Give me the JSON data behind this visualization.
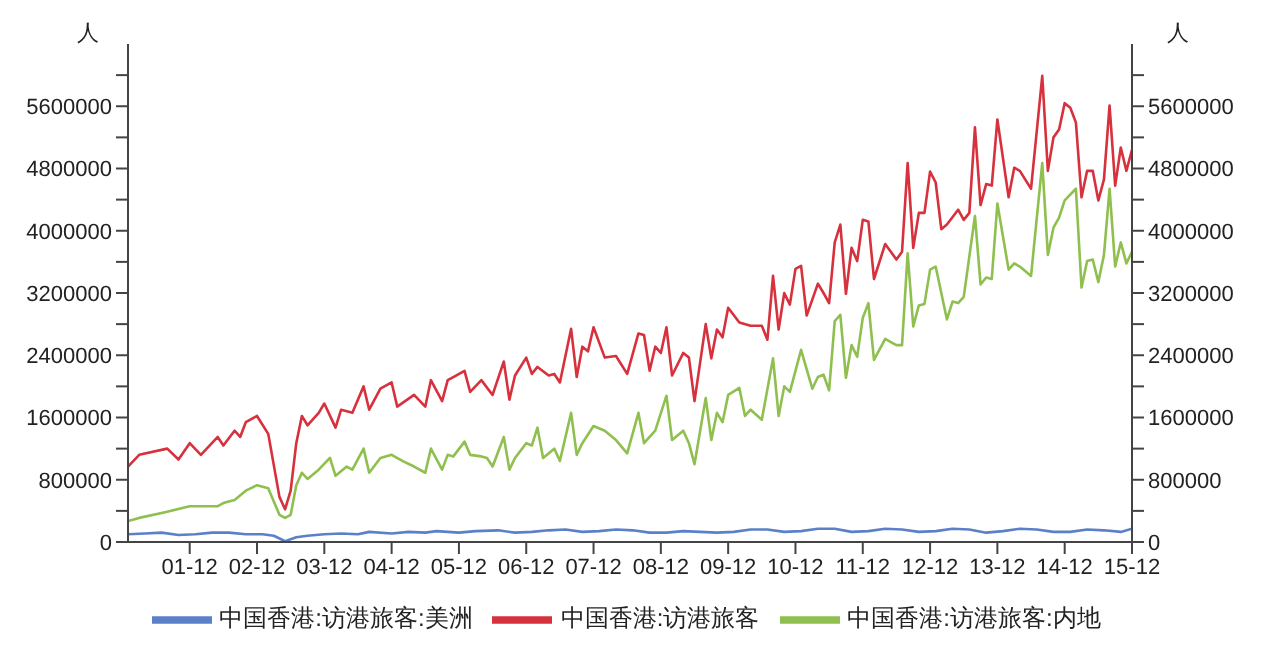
{
  "chart_data": {
    "type": "line",
    "ylabel": "人",
    "y2label": "人",
    "xlim": [
      "2001-01",
      "2015-12"
    ],
    "xticks": [
      {
        "value": "2001-12",
        "label": "01-12"
      },
      {
        "value": "2002-12",
        "label": "02-12"
      },
      {
        "value": "2003-12",
        "label": "03-12"
      },
      {
        "value": "2004-12",
        "label": "04-12"
      },
      {
        "value": "2005-12",
        "label": "05-12"
      },
      {
        "value": "2006-12",
        "label": "06-12"
      },
      {
        "value": "2007-12",
        "label": "07-12"
      },
      {
        "value": "2008-12",
        "label": "08-12"
      },
      {
        "value": "2009-12",
        "label": "09-12"
      },
      {
        "value": "2010-12",
        "label": "10-12"
      },
      {
        "value": "2011-12",
        "label": "11-12"
      },
      {
        "value": "2012-12",
        "label": "12-12"
      },
      {
        "value": "2013-12",
        "label": "13-12"
      },
      {
        "value": "2014-12",
        "label": "14-12"
      },
      {
        "value": "2015-12",
        "label": "15-12"
      }
    ],
    "ylim": [
      0,
      6400000
    ],
    "yticks": [
      0,
      {
        "value": 400000,
        "label": null
      },
      800000,
      {
        "value": 1200000,
        "label": null
      },
      1600000,
      {
        "value": 2000000,
        "label": null
      },
      2400000,
      {
        "value": 2800000,
        "label": null
      },
      3200000,
      {
        "value": 3600000,
        "label": null
      },
      4000000,
      {
        "value": 4400000,
        "label": null
      },
      4800000,
      {
        "value": 5200000,
        "label": null
      },
      5600000,
      {
        "value": 6000000,
        "label": null
      }
    ],
    "y2lim": [
      0,
      6400000
    ],
    "y2ticks": [
      0,
      {
        "value": 400000,
        "label": null
      },
      800000,
      {
        "value": 1200000,
        "label": null
      },
      1600000,
      {
        "value": 2000000,
        "label": null
      },
      2400000,
      {
        "value": 2800000,
        "label": null
      },
      3200000,
      {
        "value": 3600000,
        "label": null
      },
      4000000,
      {
        "value": 4400000,
        "label": null
      },
      4800000,
      {
        "value": 5200000,
        "label": null
      },
      5600000,
      {
        "value": 6000000,
        "label": null
      }
    ],
    "legend": "bottom",
    "marker": "none",
    "line_style": "solid",
    "series": [
      {
        "name": "中国香港:访港旅客:美洲",
        "color": "#5b80c8",
        "x": [
          "2001-01",
          "2001-04",
          "2001-07",
          "2001-10",
          "2002-01",
          "2002-04",
          "2002-07",
          "2002-10",
          "2003-01",
          "2003-03",
          "2003-05",
          "2003-07",
          "2003-09",
          "2003-12",
          "2004-03",
          "2004-06",
          "2004-08",
          "2004-12",
          "2005-03",
          "2005-06",
          "2005-08",
          "2005-12",
          "2006-03",
          "2006-07",
          "2006-10",
          "2007-01",
          "2007-04",
          "2007-07",
          "2007-10",
          "2008-01",
          "2008-04",
          "2008-07",
          "2008-10",
          "2009-01",
          "2009-04",
          "2009-07",
          "2009-10",
          "2010-01",
          "2010-04",
          "2010-07",
          "2010-10",
          "2011-01",
          "2011-04",
          "2011-07",
          "2011-10",
          "2012-01",
          "2012-04",
          "2012-07",
          "2012-10",
          "2013-01",
          "2013-04",
          "2013-07",
          "2013-10",
          "2014-01",
          "2014-04",
          "2014-07",
          "2014-10",
          "2015-01",
          "2015-04",
          "2015-07",
          "2015-10",
          "2015-12"
        ],
        "values": [
          100000,
          110000,
          120000,
          90000,
          100000,
          120000,
          120000,
          100000,
          100000,
          80000,
          10000,
          60000,
          80000,
          100000,
          110000,
          100000,
          130000,
          110000,
          130000,
          120000,
          140000,
          120000,
          140000,
          150000,
          120000,
          130000,
          150000,
          160000,
          130000,
          140000,
          160000,
          150000,
          120000,
          120000,
          140000,
          130000,
          120000,
          130000,
          160000,
          160000,
          130000,
          140000,
          170000,
          170000,
          130000,
          140000,
          170000,
          160000,
          130000,
          140000,
          170000,
          160000,
          120000,
          140000,
          170000,
          160000,
          130000,
          130000,
          160000,
          150000,
          130000,
          170000
        ]
      },
      {
        "name": "中国香港:访港旅客",
        "color": "#d6313d",
        "x": [
          "2001-01",
          "2001-03",
          "2001-08",
          "2001-10",
          "2001-12",
          "2002-02",
          "2002-05",
          "2002-06",
          "2002-08",
          "2002-09",
          "2002-10",
          "2002-12",
          "2003-02",
          "2003-04",
          "2003-05",
          "2003-06",
          "2003-07",
          "2003-08",
          "2003-09",
          "2003-11",
          "2003-12",
          "2004-02",
          "2004-03",
          "2004-05",
          "2004-07",
          "2004-08",
          "2004-10",
          "2004-12",
          "2005-01",
          "2005-04",
          "2005-06",
          "2005-07",
          "2005-09",
          "2005-10",
          "2005-11",
          "2006-01",
          "2006-02",
          "2006-04",
          "2006-06",
          "2006-08",
          "2006-09",
          "2006-10",
          "2006-12",
          "2007-01",
          "2007-02",
          "2007-04",
          "2007-05",
          "2007-06",
          "2007-08",
          "2007-09",
          "2007-10",
          "2007-11",
          "2007-12",
          "2008-02",
          "2008-04",
          "2008-06",
          "2008-08",
          "2008-09",
          "2008-10",
          "2008-11",
          "2008-12",
          "2009-01",
          "2009-02",
          "2009-04",
          "2009-05",
          "2009-06",
          "2009-08",
          "2009-09",
          "2009-10",
          "2009-11",
          "2009-12",
          "2010-02",
          "2010-04",
          "2010-06",
          "2010-07",
          "2010-08",
          "2010-09",
          "2010-10",
          "2010-11",
          "2010-12",
          "2011-01",
          "2011-02",
          "2011-04",
          "2011-05",
          "2011-06",
          "2011-07",
          "2011-08",
          "2011-09",
          "2011-10",
          "2011-11",
          "2011-12",
          "2012-01",
          "2012-02",
          "2012-04",
          "2012-05",
          "2012-06",
          "2012-07",
          "2012-08",
          "2012-09",
          "2012-10",
          "2012-11",
          "2012-12",
          "2013-01",
          "2013-02",
          "2013-03",
          "2013-05",
          "2013-06",
          "2013-07",
          "2013-08",
          "2013-09",
          "2013-10",
          "2013-11",
          "2013-12",
          "2014-02",
          "2014-03",
          "2014-04",
          "2014-06",
          "2014-08",
          "2014-09",
          "2014-10",
          "2014-11",
          "2014-12",
          "2015-01",
          "2015-02",
          "2015-03",
          "2015-04",
          "2015-05",
          "2015-06",
          "2015-07",
          "2015-08",
          "2015-09",
          "2015-10",
          "2015-11",
          "2015-12"
        ],
        "values": [
          970000,
          1120000,
          1200000,
          1060000,
          1270000,
          1120000,
          1350000,
          1240000,
          1430000,
          1350000,
          1540000,
          1620000,
          1390000,
          580000,
          420000,
          660000,
          1270000,
          1620000,
          1500000,
          1660000,
          1780000,
          1470000,
          1700000,
          1660000,
          2000000,
          1700000,
          1970000,
          2050000,
          1740000,
          1890000,
          1740000,
          2080000,
          1810000,
          2080000,
          2120000,
          2200000,
          1930000,
          2080000,
          1890000,
          2320000,
          1830000,
          2140000,
          2370000,
          2160000,
          2250000,
          2140000,
          2160000,
          2050000,
          2740000,
          2120000,
          2510000,
          2450000,
          2760000,
          2370000,
          2390000,
          2160000,
          2680000,
          2660000,
          2200000,
          2510000,
          2430000,
          2760000,
          2140000,
          2430000,
          2370000,
          1810000,
          2800000,
          2360000,
          2730000,
          2630000,
          3010000,
          2820000,
          2780000,
          2780000,
          2600000,
          3420000,
          2730000,
          3200000,
          3050000,
          3510000,
          3550000,
          2910000,
          3320000,
          3200000,
          3070000,
          3850000,
          4080000,
          3190000,
          3780000,
          3610000,
          4140000,
          4120000,
          3380000,
          3830000,
          3730000,
          3630000,
          3730000,
          4870000,
          3780000,
          4230000,
          4230000,
          4760000,
          4620000,
          4020000,
          4080000,
          4270000,
          4140000,
          4230000,
          5330000,
          4330000,
          4600000,
          4580000,
          5430000,
          4430000,
          4810000,
          4770000,
          4540000,
          5990000,
          4770000,
          5200000,
          5300000,
          5640000,
          5580000,
          5390000,
          4430000,
          4770000,
          4770000,
          4390000,
          4660000,
          5610000,
          4580000,
          5070000,
          4770000,
          5040000
        ]
      },
      {
        "name": "中国香港:访港旅客:内地",
        "color": "#8fbf4f",
        "x": [
          "2001-01",
          "2001-03",
          "2001-08",
          "2001-12",
          "2002-05",
          "2002-06",
          "2002-08",
          "2002-10",
          "2002-12",
          "2003-02",
          "2003-04",
          "2003-05",
          "2003-06",
          "2003-07",
          "2003-08",
          "2003-09",
          "2003-11",
          "2004-01",
          "2004-02",
          "2004-04",
          "2004-05",
          "2004-07",
          "2004-08",
          "2004-10",
          "2004-12",
          "2005-02",
          "2005-04",
          "2005-06",
          "2005-07",
          "2005-09",
          "2005-10",
          "2005-11",
          "2006-01",
          "2006-02",
          "2006-04",
          "2006-05",
          "2006-06",
          "2006-08",
          "2006-09",
          "2006-10",
          "2006-12",
          "2007-01",
          "2007-02",
          "2007-03",
          "2007-05",
          "2007-06",
          "2007-08",
          "2007-09",
          "2007-10",
          "2007-12",
          "2008-02",
          "2008-04",
          "2008-06",
          "2008-08",
          "2008-09",
          "2008-10",
          "2008-11",
          "2009-01",
          "2009-02",
          "2009-04",
          "2009-05",
          "2009-06",
          "2009-08",
          "2009-09",
          "2009-10",
          "2009-11",
          "2009-12",
          "2010-02",
          "2010-03",
          "2010-04",
          "2010-06",
          "2010-08",
          "2010-09",
          "2010-10",
          "2010-11",
          "2011-01",
          "2011-03",
          "2011-04",
          "2011-05",
          "2011-06",
          "2011-07",
          "2011-08",
          "2011-09",
          "2011-10",
          "2011-11",
          "2011-12",
          "2012-01",
          "2012-02",
          "2012-04",
          "2012-05",
          "2012-06",
          "2012-07",
          "2012-08",
          "2012-09",
          "2012-10",
          "2012-11",
          "2012-12",
          "2013-01",
          "2013-03",
          "2013-04",
          "2013-05",
          "2013-06",
          "2013-08",
          "2013-09",
          "2013-10",
          "2013-11",
          "2013-12",
          "2014-02",
          "2014-03",
          "2014-04",
          "2014-06",
          "2014-08",
          "2014-09",
          "2014-10",
          "2014-11",
          "2014-12",
          "2015-02",
          "2015-03",
          "2015-04",
          "2015-05",
          "2015-06",
          "2015-07",
          "2015-08",
          "2015-09",
          "2015-10",
          "2015-11",
          "2015-12"
        ],
        "values": [
          270000,
          310000,
          390000,
          460000,
          460000,
          500000,
          540000,
          660000,
          730000,
          690000,
          350000,
          310000,
          350000,
          730000,
          890000,
          810000,
          930000,
          1080000,
          850000,
          970000,
          930000,
          1200000,
          890000,
          1080000,
          1120000,
          1040000,
          970000,
          890000,
          1200000,
          930000,
          1120000,
          1100000,
          1290000,
          1120000,
          1100000,
          1080000,
          970000,
          1350000,
          930000,
          1080000,
          1270000,
          1240000,
          1470000,
          1080000,
          1200000,
          1040000,
          1660000,
          1120000,
          1270000,
          1490000,
          1430000,
          1310000,
          1140000,
          1660000,
          1270000,
          1350000,
          1430000,
          1880000,
          1310000,
          1430000,
          1270000,
          1000000,
          1850000,
          1310000,
          1660000,
          1540000,
          1890000,
          1980000,
          1620000,
          1700000,
          1570000,
          2360000,
          1620000,
          2000000,
          1930000,
          2470000,
          1970000,
          2120000,
          2150000,
          1950000,
          2840000,
          2920000,
          2110000,
          2530000,
          2380000,
          2880000,
          3070000,
          2340000,
          2610000,
          2570000,
          2530000,
          2530000,
          3710000,
          2770000,
          3040000,
          3060000,
          3500000,
          3540000,
          2860000,
          3090000,
          3070000,
          3150000,
          4190000,
          3310000,
          3400000,
          3380000,
          4350000,
          3500000,
          3580000,
          3540000,
          3420000,
          4870000,
          3690000,
          4040000,
          4170000,
          4390000,
          4540000,
          3270000,
          3610000,
          3630000,
          3340000,
          3690000,
          4540000,
          3540000,
          3850000,
          3580000,
          3730000
        ]
      }
    ]
  }
}
